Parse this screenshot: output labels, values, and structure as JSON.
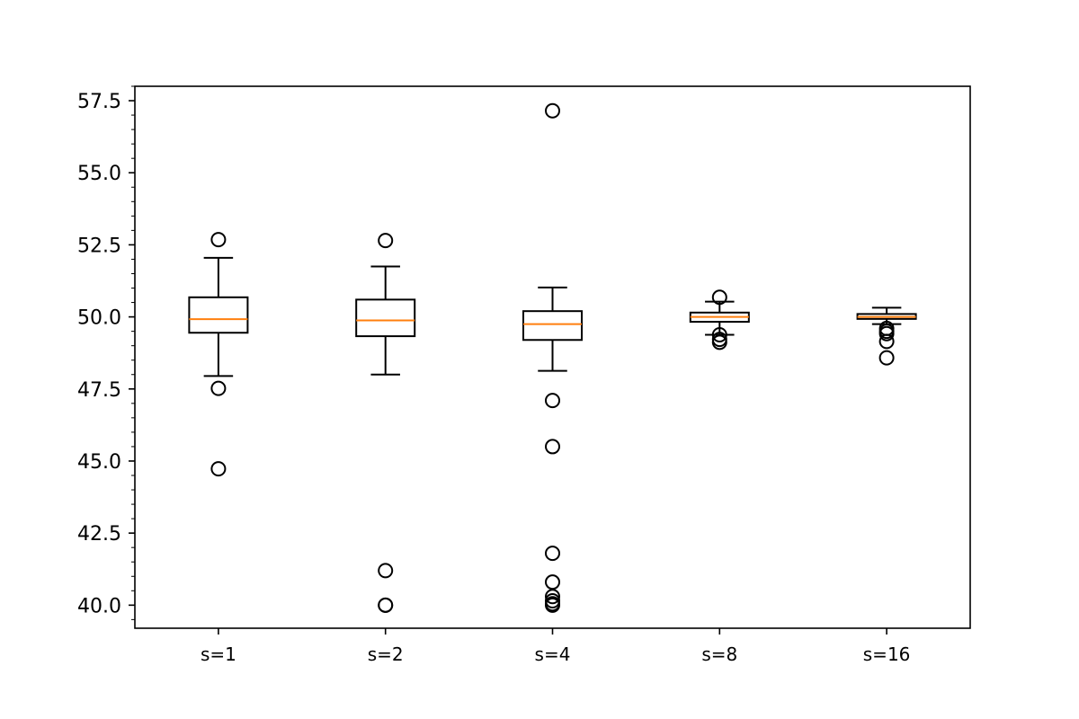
{
  "chart_data": {
    "type": "box",
    "title": "",
    "xlabel": "",
    "ylabel": "",
    "ylim": [
      39.2,
      58.0
    ],
    "yticks": [
      "40.0",
      "42.5",
      "45.0",
      "47.5",
      "50.0",
      "52.5",
      "55.0",
      "57.5"
    ],
    "minor_ticks": true,
    "grid": false,
    "categories": [
      "s=1",
      "s=2",
      "s=4",
      "s=8",
      "s=16"
    ],
    "boxes": [
      {
        "category": "s=1",
        "whisker_low": 47.95,
        "q1": 49.45,
        "median": 49.92,
        "q3": 50.68,
        "whisker_high": 52.05,
        "outliers": [
          52.68,
          47.52,
          44.73
        ]
      },
      {
        "category": "s=2",
        "whisker_low": 48.0,
        "q1": 49.33,
        "median": 49.88,
        "q3": 50.6,
        "whisker_high": 51.75,
        "outliers": [
          52.65,
          41.2,
          40.0,
          40.0
        ]
      },
      {
        "category": "s=4",
        "whisker_low": 48.13,
        "q1": 49.2,
        "median": 49.75,
        "q3": 50.2,
        "whisker_high": 51.02,
        "outliers": [
          57.15,
          47.1,
          45.5,
          41.8,
          40.8,
          40.3,
          40.15,
          40.05,
          40.0
        ]
      },
      {
        "category": "s=8",
        "whisker_low": 49.38,
        "q1": 49.83,
        "median": 50.0,
        "q3": 50.15,
        "whisker_high": 50.53,
        "outliers": [
          50.68,
          49.38,
          49.22,
          49.12
        ]
      },
      {
        "category": "s=16",
        "whisker_low": 49.75,
        "q1": 49.93,
        "median": 50.0,
        "q3": 50.1,
        "whisker_high": 50.32,
        "outliers": [
          49.6,
          49.5,
          49.42,
          49.15,
          48.58
        ]
      }
    ],
    "colors": {
      "box": "#000000",
      "median": "#ff7f0e",
      "outlier": "#000000"
    }
  }
}
